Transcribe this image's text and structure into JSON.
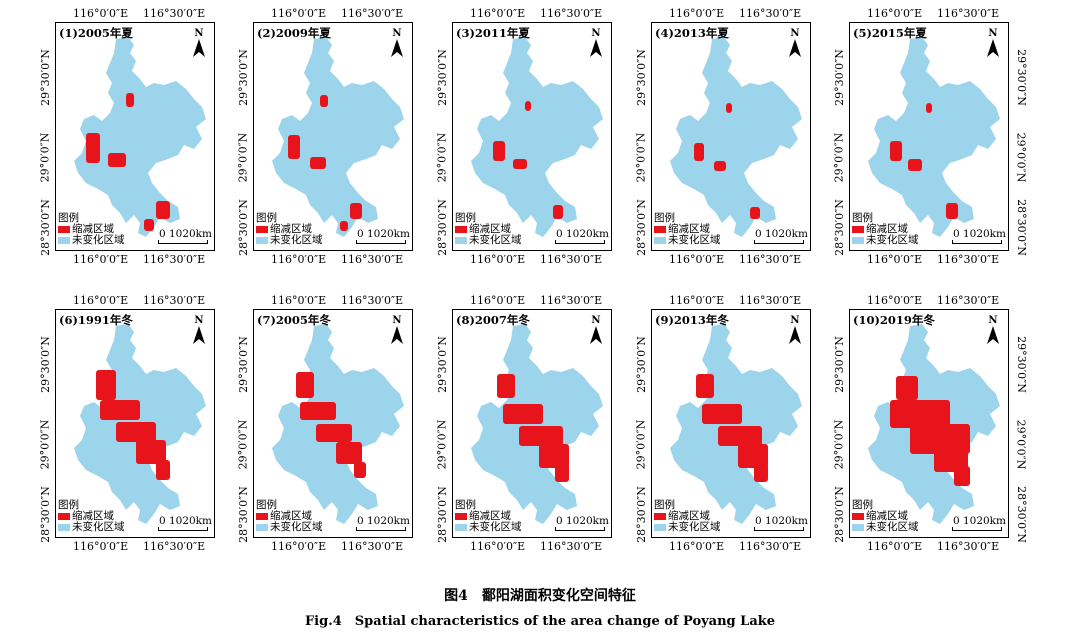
{
  "panels": [
    {
      "title": "(1)2005年夏"
    },
    {
      "title": "(2)2009年夏"
    },
    {
      "title": "(3)2011年夏"
    },
    {
      "title": "(4)2013年夏"
    },
    {
      "title": "(5)2015年夏"
    },
    {
      "title": "(6)1991年冬"
    },
    {
      "title": "(7)2005年冬"
    },
    {
      "title": "(8)2007年冬"
    },
    {
      "title": "(9)2013年冬"
    },
    {
      "title": "(10)2019年冬"
    }
  ],
  "map_common": {
    "north": "N",
    "lon_labels": [
      "116°0′0″E",
      "116°30′0″E"
    ],
    "lat_labels": [
      "29°30′0″N",
      "29°0′0″N",
      "28°30′0″N"
    ],
    "legend_title": "图例",
    "legend_items": [
      "缩减区域",
      "未变化区域"
    ],
    "scale_text": "0 1020km"
  },
  "colors": {
    "shrink": "#e8141c",
    "unchanged": "#9cd4ec"
  },
  "caption": {
    "zh": "图4　鄱阳湖面积变化空间特征",
    "en": "Fig.4　Spatial characteristics of the area change of Poyang Lake"
  }
}
